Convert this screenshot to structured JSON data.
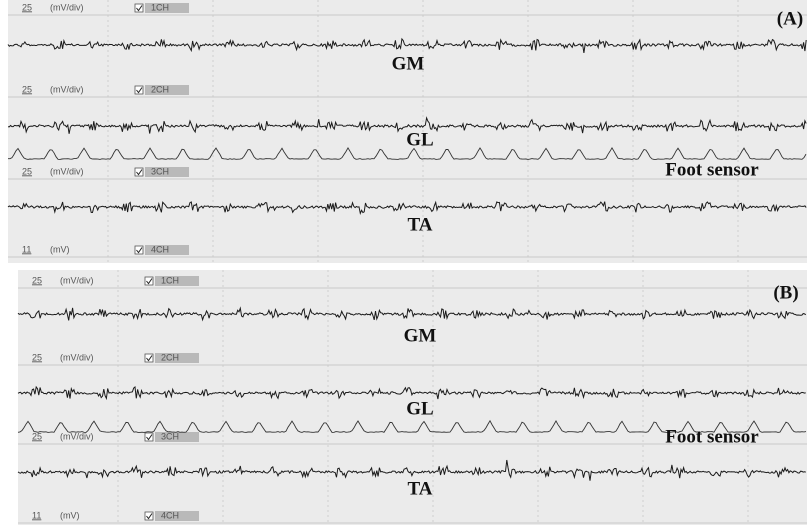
{
  "panels": [
    {
      "label": "(A)",
      "channels": [
        {
          "scale": "25",
          "unit": "(mV/div)",
          "name": "1CH"
        },
        {
          "scale": "25",
          "unit": "(mV/div)",
          "name": "2CH"
        },
        {
          "scale": "25",
          "unit": "(mV/div)",
          "name": "3CH"
        },
        {
          "scale": "11",
          "unit": "(mV)",
          "name": "4CH"
        }
      ],
      "traces": [
        "GM",
        "GL",
        "Foot sensor",
        "TA"
      ]
    },
    {
      "label": "(B)",
      "channels": [
        {
          "scale": "25",
          "unit": "(mV/div)",
          "name": "1CH"
        },
        {
          "scale": "25",
          "unit": "(mV/div)",
          "name": "2CH"
        },
        {
          "scale": "25",
          "unit": "(mV/div)",
          "name": "3CH"
        },
        {
          "scale": "11",
          "unit": "(mV)",
          "name": "4CH"
        }
      ],
      "traces": [
        "GM",
        "GL",
        "Foot sensor",
        "TA"
      ]
    }
  ]
}
